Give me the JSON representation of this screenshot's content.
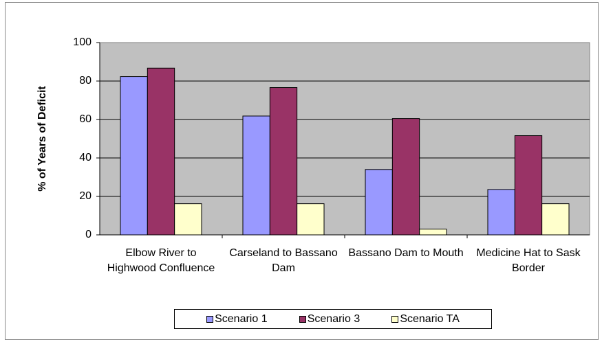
{
  "chart_data": {
    "type": "bar",
    "y_axis_label": "% of Years of Deficit",
    "categories": [
      "Elbow River to Highwood Confluence",
      "Carseland to Bassano Dam",
      "Bassano Dam to Mouth",
      "Medicine Hat to Sask Border"
    ],
    "series": [
      {
        "name": "Scenario 1",
        "color": "#9999ff",
        "values": [
          82.3,
          61.8,
          34,
          23.6
        ]
      },
      {
        "name": "Scenario 3",
        "color": "#993366",
        "values": [
          86.7,
          76.6,
          60.5,
          51.6
        ]
      },
      {
        "name": "Scenario TA",
        "color": "#ffffcc",
        "values": [
          16.2,
          16.2,
          3,
          16.2
        ]
      }
    ],
    "ylim": [
      0,
      100
    ],
    "yticks": [
      0,
      20,
      40,
      60,
      80,
      100
    ],
    "grid": true,
    "legend": "bottom"
  }
}
